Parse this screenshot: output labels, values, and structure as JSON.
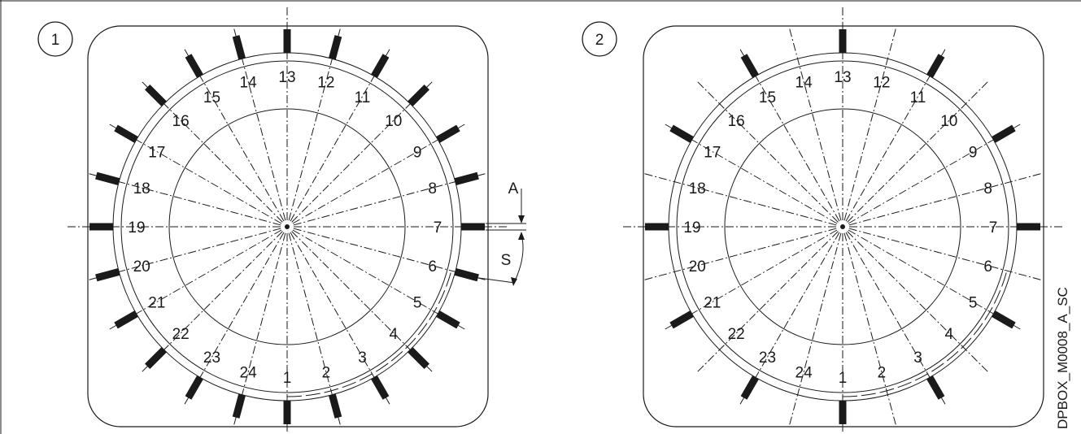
{
  "figure_code": "DPBOX_M0008_A_SC",
  "panels": [
    {
      "badge": "1",
      "markers_on_all_lines": true,
      "dimension_labels": {
        "gap": "A",
        "spacing": "S"
      }
    },
    {
      "badge": "2",
      "markers_on_all_lines": false,
      "dimension_labels": null
    }
  ],
  "position_numbers": [
    "1",
    "2",
    "3",
    "4",
    "5",
    "6",
    "7",
    "8",
    "9",
    "10",
    "11",
    "12",
    "13",
    "14",
    "15",
    "16",
    "17",
    "18",
    "19",
    "20",
    "21",
    "22",
    "23",
    "24"
  ],
  "colors": {
    "stroke": "#1a1a1a",
    "background": "#ffffff"
  }
}
